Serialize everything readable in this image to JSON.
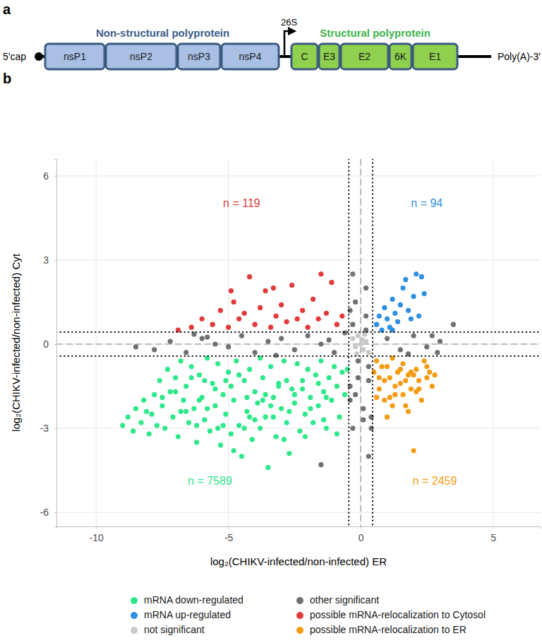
{
  "diagram": {
    "panel_label": "a",
    "five_prime": "5'cap",
    "three_prime": "Poly(A)-3'",
    "promoter": "26S",
    "groups": [
      {
        "label": "Non-structural polyprotein",
        "color": "#3b5d8a",
        "proteins": [
          "nsP1",
          "nsP2",
          "nsP3",
          "nsP4"
        ]
      },
      {
        "label": "Structural polyprotein",
        "color": "#3cb54a",
        "proteins": [
          "C",
          "E3",
          "E2",
          "6K",
          "E1"
        ]
      }
    ]
  },
  "chart_data": {
    "type": "scatter",
    "panel_label": "b",
    "x_label": "log₂(CHIKV-infected/non-infected) ER",
    "y_label": "log₂(CHIKV-infected/non-infected) Cyt",
    "xlim": [
      -11.5,
      6.8
    ],
    "ylim": [
      -6.5,
      6.6
    ],
    "xticks": [
      -10,
      -5,
      0,
      5
    ],
    "yticks": [
      -6,
      -3,
      0,
      3,
      6
    ],
    "grid": true,
    "legend": "bottom",
    "marker": "circle",
    "reference_lines": {
      "x": 0,
      "y": 0
    },
    "thresholds": {
      "x": [
        -0.45,
        0.45
      ],
      "y": [
        -0.43,
        0.43
      ]
    },
    "annotations": [
      {
        "text": "n = 119",
        "x": -4.5,
        "y": 5.0,
        "color": "#e03a3a"
      },
      {
        "text": "n = 94",
        "x": 2.5,
        "y": 5.0,
        "color": "#2f8fe0"
      },
      {
        "text": "n = 7589",
        "x": -5.7,
        "y": -4.9,
        "color": "#2ee88a"
      },
      {
        "text": "n = 2459",
        "x": 2.8,
        "y": -4.9,
        "color": "#f39c12"
      }
    ],
    "series": [
      {
        "name": "mRNA down-regulated",
        "color": "#2ee88a",
        "x": [
          -9.0,
          -8.8,
          -8.6,
          -8.5,
          -8.3,
          -8.2,
          -8.0,
          -7.9,
          -7.8,
          -7.7,
          -7.6,
          -7.5,
          -7.4,
          -7.3,
          -7.2,
          -7.1,
          -7.0,
          -6.9,
          -6.8,
          -6.7,
          -6.6,
          -6.5,
          -6.4,
          -6.3,
          -6.2,
          -6.1,
          -6.0,
          -5.9,
          -5.8,
          -5.7,
          -5.6,
          -5.5,
          -5.4,
          -5.3,
          -5.2,
          -5.1,
          -5.0,
          -4.9,
          -4.8,
          -4.7,
          -4.6,
          -4.5,
          -4.4,
          -4.3,
          -4.2,
          -4.1,
          -4.0,
          -3.9,
          -3.8,
          -3.7,
          -3.6,
          -3.5,
          -3.4,
          -3.3,
          -3.2,
          -3.1,
          -3.0,
          -2.9,
          -2.8,
          -2.7,
          -2.6,
          -2.5,
          -2.4,
          -2.3,
          -2.2,
          -2.1,
          -2.0,
          -1.9,
          -1.8,
          -1.7,
          -1.6,
          -1.5,
          -1.4,
          -1.3,
          -1.2,
          -1.1,
          -1.0,
          -0.9,
          -0.8,
          -0.7,
          -6.8,
          -6.1,
          -5.5,
          -4.9,
          -4.3,
          -3.7,
          -3.1,
          -2.5,
          -1.9,
          -1.3,
          -7.0,
          -6.4,
          -5.8,
          -5.2,
          -4.6,
          -4.0,
          -3.4,
          -2.8,
          -2.2,
          -1.6,
          -8.1,
          -7.5,
          -6.6,
          -5.9,
          -5.1,
          -4.4,
          -3.6,
          -2.9,
          -2.1,
          -0.6,
          -4.8,
          -4.2,
          -3.8,
          -3.3,
          -2.7,
          -5.4,
          -6.2,
          -1.4,
          -0.9,
          -0.5
        ],
        "values": [
          -2.9,
          -2.6,
          -3.1,
          -2.3,
          -2.8,
          -2.0,
          -3.2,
          -2.5,
          -1.8,
          -2.9,
          -1.3,
          -2.2,
          -3.0,
          -0.9,
          -1.7,
          -2.6,
          -1.2,
          -3.3,
          -0.6,
          -2.0,
          -1.5,
          -2.8,
          -0.8,
          -2.3,
          -3.5,
          -1.1,
          -1.9,
          -2.7,
          -0.5,
          -3.1,
          -1.4,
          -2.2,
          -0.7,
          -3.6,
          -1.8,
          -2.5,
          -1.0,
          -3.2,
          -2.0,
          -0.6,
          -2.9,
          -4.0,
          -1.3,
          -2.4,
          -0.9,
          -3.4,
          -1.7,
          -2.1,
          -3.0,
          -1.2,
          -2.6,
          -4.4,
          -0.8,
          -1.9,
          -3.3,
          -1.4,
          -2.3,
          -0.6,
          -2.8,
          -3.9,
          -1.6,
          -2.1,
          -0.7,
          -3.1,
          -1.3,
          -2.5,
          -0.9,
          -1.9,
          -2.8,
          -1.1,
          -2.2,
          -0.6,
          -1.7,
          -3.0,
          -1.2,
          -2.0,
          -0.8,
          -1.5,
          -2.6,
          -1.0,
          -2.4,
          -2.0,
          -1.6,
          -1.5,
          -1.9,
          -2.0,
          -1.5,
          -1.8,
          -2.3,
          -1.9,
          -1.7,
          -1.2,
          -2.3,
          -2.9,
          -1.1,
          -2.7,
          -2.2,
          -1.3,
          -1.6,
          -1.4,
          -2.4,
          -1.9,
          -2.4,
          -1.3,
          -1.3,
          -3.0,
          -1.8,
          -3.4,
          -3.3,
          -1.8,
          -3.8,
          -2.6,
          -0.5,
          -2.6,
          -2.4,
          -3.0,
          -2.9,
          -2.7,
          -3.2,
          -0.9
        ]
      },
      {
        "name": "mRNA up-regulated",
        "color": "#2f8fe0",
        "x": [
          0.6,
          0.8,
          0.9,
          1.0,
          1.1,
          1.2,
          1.3,
          1.4,
          1.5,
          1.6,
          1.7,
          1.8,
          1.9,
          2.0,
          2.1,
          2.2,
          2.3,
          2.4,
          1.2,
          0.7
        ],
        "values": [
          0.7,
          0.5,
          1.3,
          0.9,
          0.6,
          1.6,
          1.1,
          0.8,
          1.4,
          2.0,
          2.3,
          1.2,
          0.9,
          1.7,
          2.5,
          1.0,
          2.4,
          1.8,
          0.5,
          1.0
        ]
      },
      {
        "name": "not significant",
        "color": "#c8c8c8",
        "x": [
          -0.3,
          -0.2,
          -0.1,
          0.0,
          0.1,
          0.2,
          0.3,
          -0.15,
          0.15,
          0.05
        ],
        "values": [
          0.2,
          -0.1,
          0.3,
          0.0,
          -0.2,
          0.1,
          -0.3,
          -0.35,
          0.35,
          0.15
        ]
      },
      {
        "name": "other significant",
        "color": "#707070",
        "x": [
          -7.8,
          -7.2,
          -6.6,
          -6.0,
          -5.5,
          -5.0,
          -4.5,
          -4.0,
          -3.5,
          -3.0,
          -2.5,
          -2.0,
          -1.5,
          -1.0,
          -0.6,
          1.0,
          1.5,
          2.0,
          2.5,
          3.0,
          -0.3,
          -0.2,
          0.1,
          0.3,
          -0.4,
          0.2,
          -0.1,
          0.4,
          -0.3,
          0.2,
          -0.2,
          0.3,
          -0.4,
          0.1,
          -1.5,
          3.5,
          2.9,
          -8.5,
          -6.3,
          -0.3,
          0.4,
          -0.1,
          0.2,
          -0.4,
          0.3,
          -3.2,
          -5.8,
          1.8,
          2.7,
          -1.2
        ],
        "values": [
          -0.2,
          0.1,
          -0.3,
          0.2,
          0.0,
          -0.1,
          0.3,
          -0.3,
          0.1,
          0.2,
          -0.2,
          0.3,
          0.0,
          -0.3,
          0.4,
          0.2,
          -0.2,
          0.3,
          -0.1,
          0.1,
          2.5,
          1.5,
          -2.7,
          -4.0,
          -2.0,
          1.0,
          -1.2,
          -3.0,
          0.7,
          2.0,
          -1.8,
          -0.8,
          1.2,
          -2.3,
          -4.3,
          0.7,
          -0.3,
          -0.1,
          0.35,
          -3.0,
          -2.6,
          -0.6,
          0.5,
          -1.5,
          -1.3,
          -0.4,
          0.25,
          -0.35,
          0.3,
          0.15
        ]
      },
      {
        "name": "possible mRNA-relocalization to Cytosol",
        "color": "#e03a3a",
        "x": [
          -6.9,
          -6.4,
          -6.0,
          -5.6,
          -5.3,
          -5.0,
          -4.8,
          -4.6,
          -4.4,
          -4.2,
          -4.0,
          -3.8,
          -3.6,
          -3.4,
          -3.2,
          -3.0,
          -2.8,
          -2.6,
          -2.4,
          -2.2,
          -2.0,
          -1.8,
          -1.6,
          -1.5,
          -1.3,
          -1.1,
          -0.9,
          -0.7,
          -3.3,
          -4.9
        ],
        "values": [
          0.5,
          0.6,
          0.9,
          0.7,
          1.2,
          0.6,
          1.5,
          0.9,
          1.1,
          2.4,
          0.7,
          1.3,
          1.9,
          0.6,
          1.0,
          1.4,
          0.8,
          2.1,
          0.9,
          1.2,
          0.6,
          1.6,
          0.9,
          2.5,
          1.1,
          2.2,
          0.7,
          1.0,
          2.0,
          1.9
        ]
      },
      {
        "name": "possible mRNA-relocalization to ER",
        "color": "#f39c12",
        "x": [
          0.5,
          0.6,
          0.7,
          0.8,
          0.9,
          1.0,
          1.1,
          1.2,
          1.3,
          1.4,
          1.5,
          1.6,
          1.7,
          1.8,
          1.9,
          2.0,
          2.1,
          2.2,
          2.3,
          2.4,
          2.5,
          2.6,
          2.7,
          2.8,
          0.6,
          0.9,
          1.2,
          1.5,
          1.8,
          2.1,
          0.7,
          1.0,
          1.3,
          1.6,
          1.9,
          2.2,
          2.5,
          1.1,
          1.7,
          2.0
        ],
        "values": [
          -1.0,
          -0.6,
          -1.6,
          -0.8,
          -2.0,
          -2.6,
          -1.2,
          -0.5,
          -1.8,
          -1.0,
          -1.4,
          -0.7,
          -2.2,
          -1.1,
          -1.6,
          -3.8,
          -0.9,
          -1.3,
          -2.0,
          -0.6,
          -1.2,
          -1.0,
          -1.5,
          -1.1,
          -1.9,
          -1.3,
          -2.2,
          -0.9,
          -2.4,
          -1.7,
          -1.2,
          -0.8,
          -1.5,
          -1.8,
          -1.0,
          -1.6,
          -0.8,
          -1.9,
          -1.3,
          -1.1
        ]
      }
    ]
  }
}
